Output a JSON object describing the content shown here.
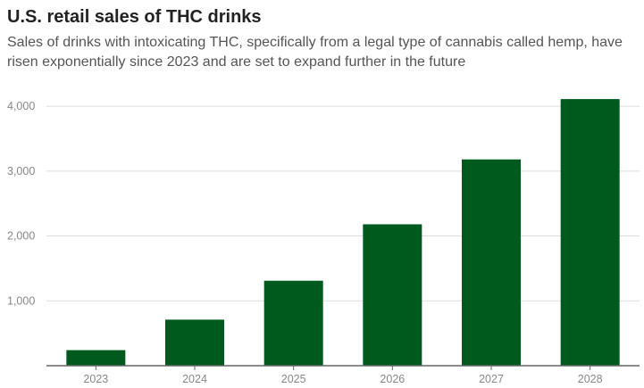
{
  "chart_data": {
    "type": "bar",
    "title": "U.S. retail sales of THC drinks",
    "subtitle": "Sales of drinks with intoxicating THC, specifically from a legal type of cannabis called hemp, have risen exponentially since 2023 and are set to expand further in the future",
    "categories": [
      "2023",
      "2024",
      "2025",
      "2026",
      "2027",
      "2028"
    ],
    "values": [
      240,
      710,
      1310,
      2180,
      3180,
      4110
    ],
    "yticks": [
      1000,
      2000,
      3000,
      4000
    ],
    "ytick_labels": [
      "1,000",
      "2,000",
      "3,000",
      "4,000"
    ],
    "ylim": [
      0,
      4400
    ],
    "xlabel": "",
    "ylabel": "",
    "bar_color": "#005a1e",
    "grid_color": "#dddddd",
    "axis_color": "#666666"
  }
}
